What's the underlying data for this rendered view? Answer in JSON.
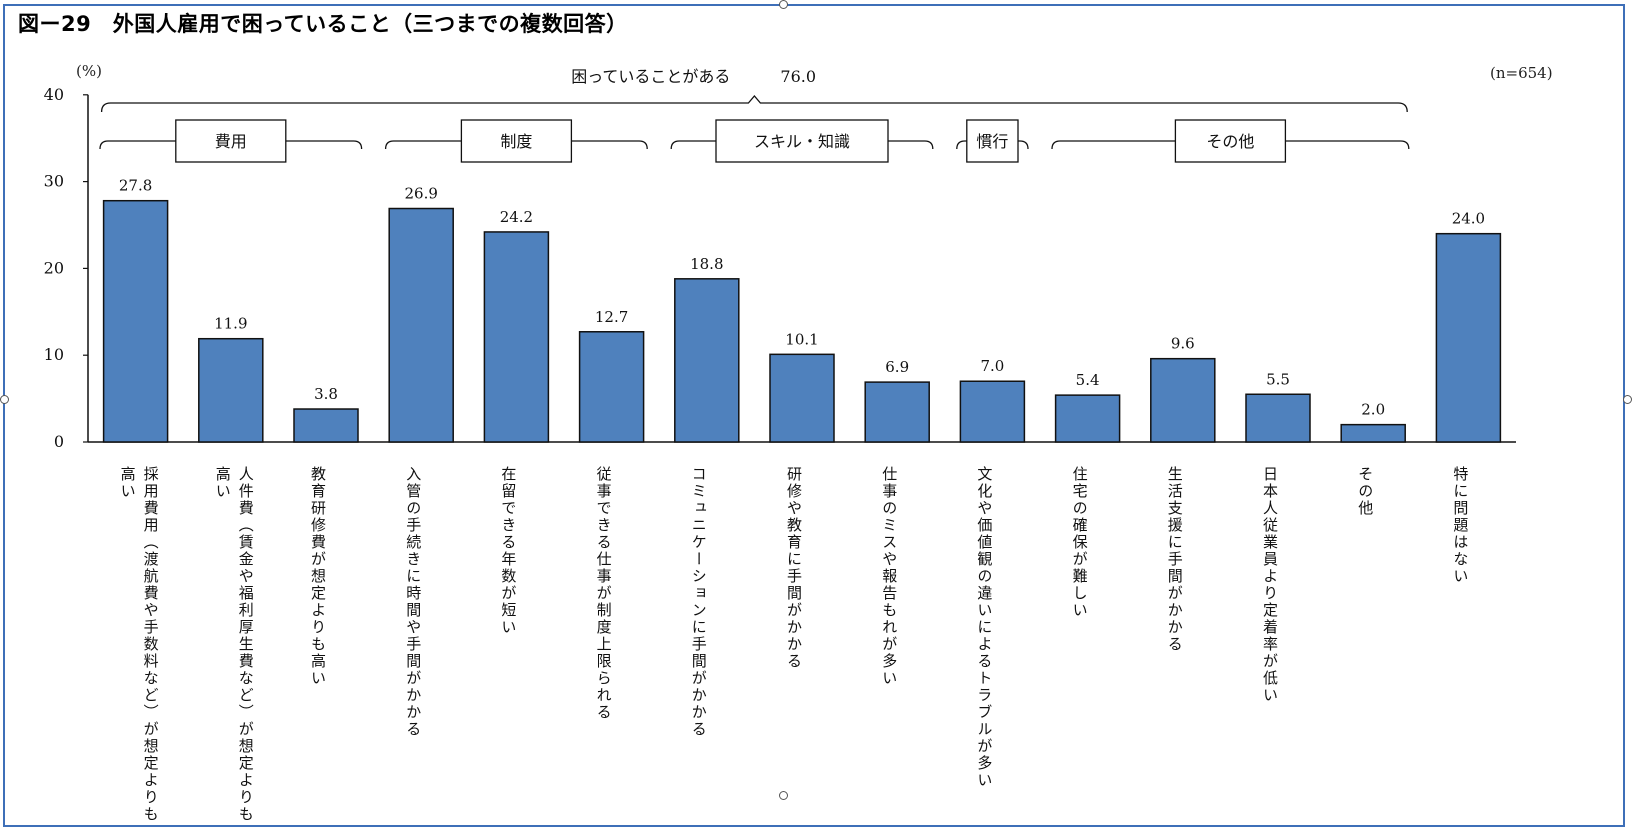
{
  "chart_data": {
    "type": "bar",
    "title": "図ー29　外国人雇用で困っていること（三つまでの複数回答）",
    "ylabel": "(%)",
    "sample_note": "(n=654)",
    "ylim": [
      0,
      40
    ],
    "yticks": [
      0,
      10,
      20,
      30,
      40
    ],
    "grid": false,
    "bar_color": "#4f81bd",
    "categories": [
      "採用費用（渡航費や手数料など）が想定よりも高い",
      "人件費（賃金や福利厚生費など）が想定よりも高い",
      "教育研修費が想定よりも高い",
      "入管の手続きに時間や手間がかかる",
      "在留できる年数が短い",
      "従事できる仕事が制度上限られる",
      "コミュニケーションに手間がかかる",
      "研修や教育に手間がかかる",
      "仕事のミスや報告もれが多い",
      "文化や価値観の違いによるトラブルが多い",
      "住宅の確保が難しい",
      "生活支援に手間がかかる",
      "日本人従業員より定着率が低い",
      "その他",
      "特に問題はない"
    ],
    "values": [
      27.8,
      11.9,
      3.8,
      26.9,
      24.2,
      12.7,
      18.8,
      10.1,
      6.9,
      7.0,
      5.4,
      9.6,
      5.5,
      2.0,
      24.0
    ],
    "value_labels": [
      "27.8",
      "11.9",
      "3.8",
      "26.9",
      "24.2",
      "12.7",
      "18.8",
      "10.1",
      "6.9",
      "7.0",
      "5.4",
      "9.6",
      "5.5",
      "2.0",
      "24.0"
    ],
    "overall_group": {
      "label": "困っていることがある",
      "value": "76.0",
      "first": 0,
      "last": 13
    },
    "groups": [
      {
        "label": "費用",
        "first": 0,
        "last": 2
      },
      {
        "label": "制度",
        "first": 3,
        "last": 5
      },
      {
        "label": "スキル・知識",
        "first": 6,
        "last": 8
      },
      {
        "label": "慣行",
        "first": 9,
        "last": 9
      },
      {
        "label": "その他",
        "first": 10,
        "last": 13
      }
    ]
  }
}
